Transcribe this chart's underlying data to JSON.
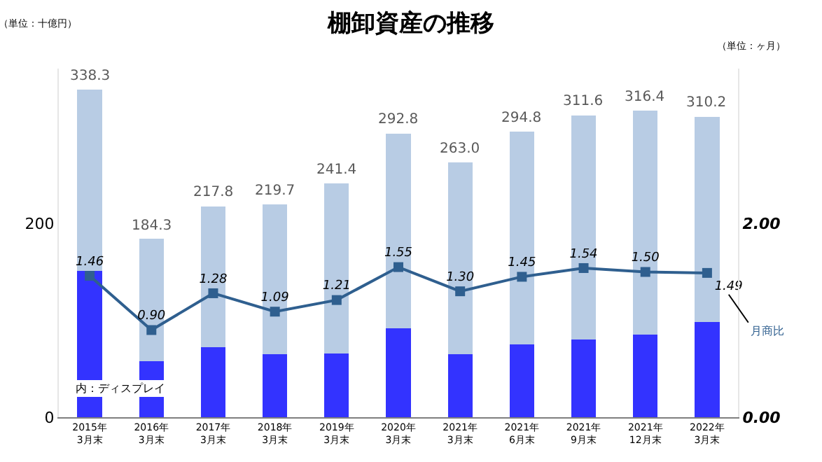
{
  "chart_data": {
    "type": "bar",
    "title": "棚卸資産の推移",
    "ylabel": "（単位：十億円）",
    "y2label": "（単位：ヶ月）",
    "categories": [
      "2015年\n3月末",
      "2016年\n3月末",
      "2017年\n3月末",
      "2018年\n3月末",
      "2019年\n3月末",
      "2020年\n3月末",
      "2021年\n3月末",
      "2021年\n6月末",
      "2021年\n9月末",
      "2021年\n12月末",
      "2022年\n3月末"
    ],
    "stacked": true,
    "series": [
      {
        "name": "内：ディスプレイ",
        "color": "#3333ff",
        "values": [
          151,
          58,
          72,
          65,
          66,
          92,
          65,
          75,
          80,
          85,
          98
        ]
      },
      {
        "color": "#b8cce4",
        "values": [
          187.3,
          126.3,
          145.8,
          154.7,
          175.4,
          200.8,
          198.0,
          219.8,
          231.6,
          231.4,
          212.2
        ]
      },
      {
        "name": "月商比",
        "type": "line",
        "axis": "y2",
        "color": "#2f5f8f",
        "marker": "square",
        "values": [
          1.46,
          0.9,
          1.28,
          1.09,
          1.21,
          1.55,
          1.3,
          1.45,
          1.54,
          1.5,
          1.49
        ],
        "value_labels": [
          "1.46",
          "0.90",
          "1.28",
          "1.09",
          "1.21",
          "1.55",
          "1.30",
          "1.45",
          "1.54",
          "1.50",
          "1.49"
        ]
      }
    ],
    "totals": [
      "338.3",
      "184.3",
      "217.8",
      "219.7",
      "241.4",
      "292.8",
      "263.0",
      "294.8",
      "311.6",
      "316.4",
      "310.2"
    ],
    "ylim": [
      0,
      360
    ],
    "yticks": [
      0,
      200
    ],
    "y2lim": [
      0,
      3.6
    ],
    "y2ticks": [
      {
        "value": 0,
        "label": "0.00"
      },
      {
        "value": 2,
        "label": "2.00"
      }
    ],
    "legend": false
  }
}
